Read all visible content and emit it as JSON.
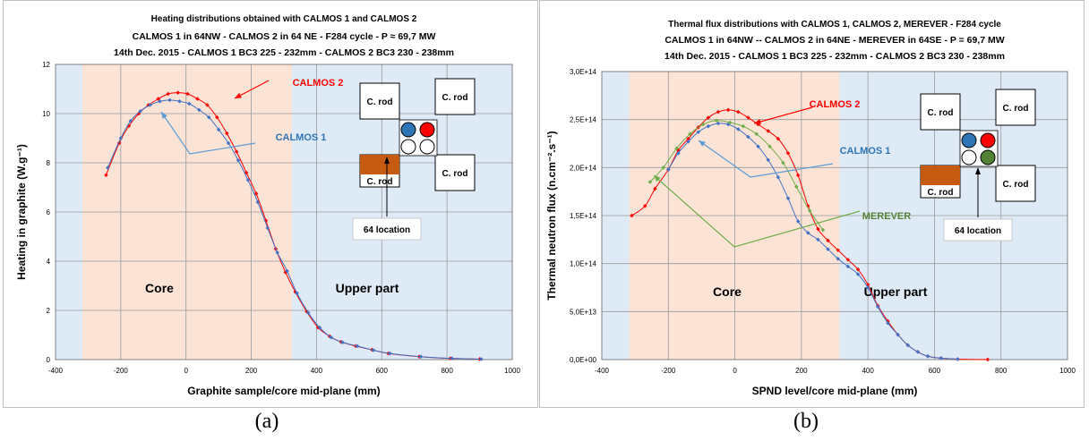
{
  "captions": {
    "a": "(a)",
    "b": "(b)"
  },
  "chart_data": [
    {
      "type": "line",
      "title_lines": [
        "Heating distributions obtained with CALMOS 1 and CALMOS 2",
        "CALMOS 1 in 64NW - CALMOS 2 in 64 NE - F284 cycle - P ≈ 69,7 MW",
        "14th Dec. 2015 - CALMOS 1 BC3 225 - 232mm - CALMOS 2 BC3 230 - 238mm"
      ],
      "xlabel": "Graphite sample/core mid-plane (mm)",
      "ylabel": "Heating in graphite (W.g⁻¹)",
      "xlim": [
        -400,
        1000
      ],
      "ylim": [
        0,
        12
      ],
      "xticks": [
        -400,
        -200,
        0,
        200,
        400,
        600,
        800,
        1000
      ],
      "xtick_labels": [
        "-400",
        "-200",
        "0",
        "200",
        "400",
        "600",
        "800",
        "1000"
      ],
      "yticks": [
        0,
        2,
        4,
        6,
        8,
        10,
        12
      ],
      "ytick_labels": [
        "0",
        "2",
        "4",
        "6",
        "8",
        "10",
        "12"
      ],
      "grid": true,
      "regions": [
        {
          "label": "Core",
          "x_range": [
            -318,
            325
          ],
          "color": "#fbe3d6"
        },
        {
          "label": "Upper part",
          "x_range": [
            325,
            1000
          ],
          "color": "#deebf7"
        }
      ],
      "outer_color": "#deebf7",
      "series": [
        {
          "name": "CALMOS 2",
          "color": "#ff0000",
          "x": [
            -245,
            -205,
            -175,
            -145,
            -115,
            -85,
            -55,
            -25,
            5,
            35,
            65,
            95,
            125,
            155,
            185,
            215,
            245,
            275,
            305,
            335,
            370,
            405,
            440,
            475,
            520,
            570,
            620,
            715,
            810,
            900
          ],
          "y": [
            7.5,
            8.8,
            9.5,
            10.0,
            10.35,
            10.6,
            10.8,
            10.85,
            10.8,
            10.6,
            10.35,
            9.85,
            9.2,
            8.45,
            7.6,
            6.75,
            5.65,
            4.5,
            3.55,
            2.75,
            1.95,
            1.3,
            0.95,
            0.72,
            0.55,
            0.4,
            0.25,
            0.12,
            0.05,
            0.02
          ]
        },
        {
          "name": "CALMOS 1",
          "color": "#4472c4",
          "x": [
            -240,
            -200,
            -170,
            -140,
            -110,
            -80,
            -50,
            -20,
            10,
            40,
            70,
            100,
            130,
            160,
            190,
            220,
            250,
            280,
            310,
            340,
            375,
            410,
            445,
            480,
            525,
            575,
            625,
            720,
            815,
            905
          ],
          "y": [
            7.8,
            9.0,
            9.7,
            10.1,
            10.35,
            10.5,
            10.55,
            10.5,
            10.4,
            10.15,
            9.85,
            9.35,
            8.8,
            8.1,
            7.3,
            6.4,
            5.35,
            4.35,
            3.6,
            2.7,
            1.9,
            1.3,
            0.9,
            0.7,
            0.55,
            0.38,
            0.25,
            0.12,
            0.05,
            0.02
          ]
        }
      ],
      "annotations": {
        "calmos2_label": "CALMOS 2",
        "calmos1_label": "CALMOS 1",
        "core_label": "Core",
        "upper_label": "Upper part",
        "rod_tl": "C. rod",
        "rod_tr": "C. rod",
        "rod_br": "C. rod",
        "rod_bl": "C. rod",
        "location_label": "64 location"
      }
    },
    {
      "type": "line",
      "title_lines": [
        "Thermal flux distributions with CALMOS 1, CALMOS 2, MEREVER - F284 cycle",
        "CALMOS 1 in 64NW -- CALMOS 2 in 64NE - MEREVER in 64SE - P = 69,7 MW",
        "14th Dec. 2015 - CALMOS 1 BC3 225 - 232mm - CALMOS 2 BC3 230 - 238mm"
      ],
      "xlabel": "SPND level/core mid-plane (mm)",
      "ylabel": "Thermal neutron flux (n.cm⁻².s⁻¹)",
      "xlim": [
        -400,
        1000
      ],
      "ylim": [
        0,
        300000000000000.0
      ],
      "xticks": [
        -400,
        -200,
        0,
        200,
        400,
        600,
        800,
        1000
      ],
      "xtick_labels": [
        "-400",
        "-200",
        "0",
        "200",
        "400",
        "600",
        "800",
        "1000"
      ],
      "yticks": [
        0,
        50000000000000.0,
        100000000000000.0,
        150000000000000.0,
        200000000000000.0,
        250000000000000.0,
        300000000000000.0
      ],
      "ytick_labels": [
        "0,0E+00",
        "5,0E+13",
        "1,0E+14",
        "1,5E+14",
        "2,0E+14",
        "2,5E+14",
        "3,0E+14"
      ],
      "grid": true,
      "regions": [
        {
          "label": "Core",
          "x_range": [
            -318,
            315
          ],
          "color": "#fbe3d6"
        },
        {
          "label": "Upper part",
          "x_range": [
            315,
            1000
          ],
          "color": "#deebf7"
        }
      ],
      "outer_color": "#deebf7",
      "series": [
        {
          "name": "CALMOS 2",
          "color": "#ff0000",
          "x": [
            -310,
            -270,
            -240,
            -200,
            -170,
            -140,
            -110,
            -80,
            -50,
            -20,
            10,
            40,
            70,
            100,
            130,
            160,
            190,
            220,
            250,
            280,
            310,
            340,
            370,
            400,
            430,
            460,
            490,
            520,
            550,
            580,
            620,
            670,
            760
          ],
          "y": [
            150000000000000.0,
            160000000000000.0,
            178000000000000.0,
            198000000000000.0,
            218000000000000.0,
            230000000000000.0,
            242000000000000.0,
            252000000000000.0,
            258000000000000.0,
            260000000000000.0,
            258000000000000.0,
            252000000000000.0,
            245000000000000.0,
            238000000000000.0,
            230000000000000.0,
            215000000000000.0,
            192000000000000.0,
            160000000000000.0,
            136000000000000.0,
            124000000000000.0,
            114000000000000.0,
            104000000000000.0,
            94000000000000.0,
            78000000000000.0,
            56000000000000.0,
            40000000000000.0,
            26000000000000.0,
            15000000000000.0,
            8000000000000.0,
            3500000000000.0,
            1500000000000.0,
            500000000000.0,
            100000000000.0
          ]
        },
        {
          "name": "CALMOS 1",
          "color": "#4472c4",
          "x": [
            -200,
            -170,
            -140,
            -110,
            -80,
            -50,
            -20,
            10,
            40,
            70,
            100,
            130,
            160,
            190,
            220,
            250,
            280,
            310,
            340,
            370,
            400,
            430,
            460,
            490,
            520,
            550,
            580,
            620,
            670
          ],
          "y": [
            198000000000000.0,
            215000000000000.0,
            227000000000000.0,
            237000000000000.0,
            243000000000000.0,
            246000000000000.0,
            245000000000000.0,
            240000000000000.0,
            232000000000000.0,
            222000000000000.0,
            208000000000000.0,
            190000000000000.0,
            168000000000000.0,
            144000000000000.0,
            132000000000000.0,
            125000000000000.0,
            115000000000000.0,
            105000000000000.0,
            97000000000000.0,
            89000000000000.0,
            75000000000000.0,
            55000000000000.0,
            38000000000000.0,
            26000000000000.0,
            15000000000000.0,
            8000000000000.0,
            3500000000000.0,
            1500000000000.0,
            500000000000.0
          ]
        },
        {
          "name": "MEREVER",
          "color": "#70ad47",
          "x": [
            -255,
            -215,
            -175,
            -135,
            -95,
            -55,
            -15,
            25,
            65,
            105,
            145,
            185,
            225,
            265
          ],
          "y": [
            185000000000000.0,
            200000000000000.0,
            220000000000000.0,
            235000000000000.0,
            245000000000000.0,
            249000000000000.0,
            247000000000000.0,
            243000000000000.0,
            235000000000000.0,
            222000000000000.0,
            205000000000000.0,
            180000000000000.0,
            155000000000000.0,
            135000000000000.0
          ]
        }
      ],
      "annotations": {
        "calmos2_label": "CALMOS 2",
        "calmos1_label": "CALMOS 1",
        "merever_label": "MEREVER",
        "core_label": "Core",
        "upper_label": "Upper part",
        "rod_tl": "C. rod",
        "rod_tr": "C. rod",
        "rod_br": "C. rod",
        "rod_bl": "C. rod",
        "location_label": "64 location"
      }
    }
  ]
}
